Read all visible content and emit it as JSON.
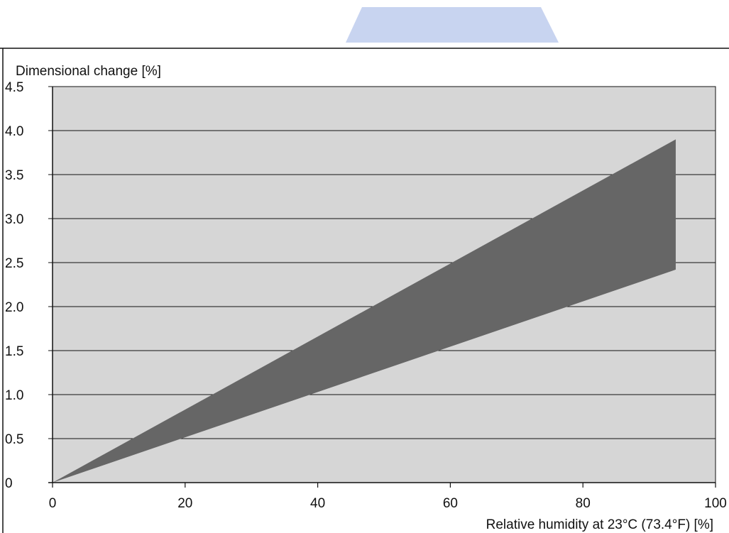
{
  "chart_data": {
    "type": "area",
    "title": "",
    "ylabel": "Dimensional change [%]",
    "xlabel": "Relative humidity at 23°C (73.4°F) [%]",
    "xlim": [
      0,
      100
    ],
    "ylim": [
      0,
      4.5
    ],
    "x_ticks": [
      "0",
      "20",
      "40",
      "60",
      "80",
      "100"
    ],
    "y_ticks": [
      "0",
      "0.5",
      "1.0",
      "1.5",
      "2.0",
      "2.5",
      "3.0",
      "3.5",
      "4.0",
      "4.5"
    ],
    "grid": "horizontal",
    "band": {
      "x": [
        0,
        94
      ],
      "upper": [
        0,
        3.9
      ],
      "lower": [
        0,
        2.42
      ]
    },
    "colors": {
      "plot_background": "#d6d6d6",
      "band_fill": "#666666",
      "gridline": "#111111",
      "decoration": "#c8d4f0"
    }
  }
}
